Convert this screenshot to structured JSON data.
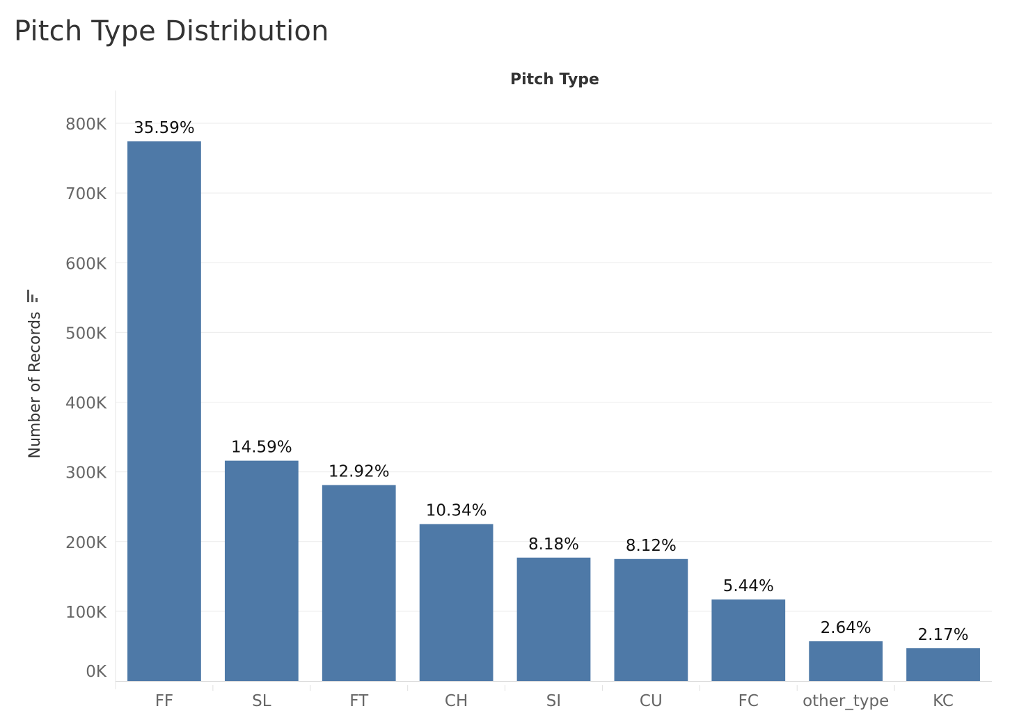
{
  "title": "Pitch Type Distribution",
  "chart_data": {
    "type": "bar",
    "xlabel": "Pitch Type",
    "ylabel": "Number of Records",
    "categories": [
      "FF",
      "SL",
      "FT",
      "CH",
      "SI",
      "CU",
      "FC",
      "other_type",
      "KC"
    ],
    "values": [
      774000,
      316000,
      281000,
      225000,
      177000,
      175000,
      117000,
      57000,
      47000
    ],
    "data_labels": [
      "35.59%",
      "14.59%",
      "12.92%",
      "10.34%",
      "8.18%",
      "8.12%",
      "5.44%",
      "2.64%",
      "2.17%"
    ],
    "yticks": [
      0,
      100000,
      200000,
      300000,
      400000,
      500000,
      600000,
      700000,
      800000
    ],
    "ytick_labels": [
      "0K",
      "100K",
      "200K",
      "300K",
      "400K",
      "500K",
      "600K",
      "700K",
      "800K"
    ],
    "ylim": [
      0,
      800000
    ],
    "grid": true,
    "bar_color": "#4e79a7",
    "sort_icon": "sort-descending-icon"
  }
}
